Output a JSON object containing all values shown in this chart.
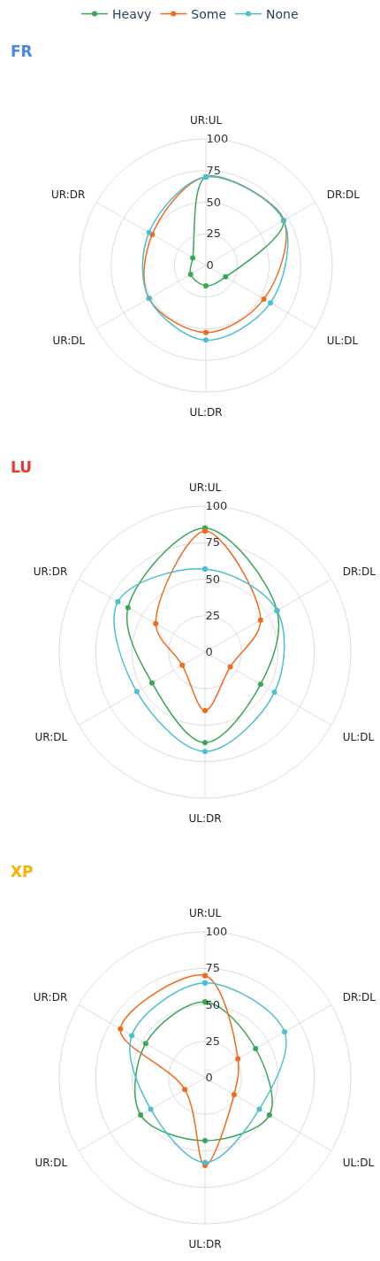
{
  "chart_data": [
    {
      "type": "radar",
      "title": "FR",
      "categories": [
        "UR:UL",
        "DR:DL",
        "UL:DL",
        "UL:DR",
        "UR:DL",
        "UR:DR"
      ],
      "ylim": [
        0,
        100
      ],
      "yticks": [
        0,
        25,
        50,
        75,
        100
      ],
      "grid": true,
      "marker": "circle",
      "legend": "top",
      "series": [
        {
          "name": "Heavy",
          "color": "#3aa757",
          "values": [
            70,
            71,
            18,
            16,
            14,
            12
          ]
        },
        {
          "name": "Some",
          "color": "#f26b1d",
          "values": [
            70,
            71,
            53,
            53,
            52,
            49
          ]
        },
        {
          "name": "None",
          "color": "#4bbfcf",
          "values": [
            70,
            71,
            59,
            59,
            52,
            52
          ]
        }
      ]
    },
    {
      "type": "radar",
      "title": "LU",
      "categories": [
        "UR:UL",
        "DR:DL",
        "UL:DL",
        "UL:DR",
        "UR:DL",
        "UR:DR"
      ],
      "ylim": [
        0,
        100
      ],
      "yticks": [
        0,
        25,
        50,
        75,
        100
      ],
      "grid": true,
      "marker": "circle",
      "series": [
        {
          "color": "#3aa757",
          "values": [
            85,
            57,
            44,
            62,
            42,
            61
          ]
        },
        {
          "color": "#f26b1d",
          "values": [
            83,
            44,
            20,
            40,
            18,
            39
          ]
        },
        {
          "color": "#4bbfcf",
          "values": [
            57,
            57,
            55,
            68,
            54,
            69
          ]
        }
      ]
    },
    {
      "type": "radar",
      "title": "XP",
      "categories": [
        "UR:UL",
        "DR:DL",
        "UL:DL",
        "UL:DR",
        "UR:DL",
        "UR:DR"
      ],
      "ylim": [
        0,
        100
      ],
      "yticks": [
        0,
        25,
        50,
        75,
        100
      ],
      "grid": true,
      "marker": "circle",
      "series": [
        {
          "color": "#3aa757",
          "values": [
            52,
            40,
            51,
            43,
            51,
            47
          ]
        },
        {
          "color": "#f26b1d",
          "values": [
            70,
            26,
            23,
            60,
            16,
            67
          ]
        },
        {
          "color": "#4bbfcf",
          "values": [
            65,
            63,
            43,
            58,
            43,
            58
          ]
        }
      ]
    }
  ]
}
